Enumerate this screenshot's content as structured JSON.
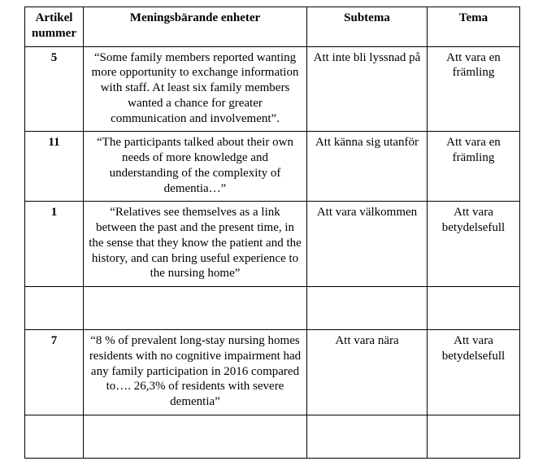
{
  "headers": {
    "col1": "Artikel nummer",
    "col2": "Meningsbärande enheter",
    "col3": "Subtema",
    "col4": "Tema"
  },
  "rows": [
    {
      "num": "5",
      "unit": "“Some family members reported wanting more opportunity to exchange information with staff. At least six family members wanted a chance for greater communication and involvement”.",
      "subtheme": "Att inte bli lyssnad på",
      "theme": "Att vara en främling"
    },
    {
      "num": "11",
      "unit": "“The participants talked about their own needs of more knowledge and understanding of the complexity of dementia…”",
      "subtheme": "Att känna sig utanför",
      "theme": "Att vara en främling"
    },
    {
      "num": "1",
      "unit": "“Relatives see themselves as a link between the past and the present time, in the sense that they know the patient and the history, and can bring useful experience to the nursing home”",
      "subtheme": "Att vara välkommen",
      "theme": "Att vara betydelsefull"
    },
    {
      "num": "7",
      "unit": "“8 % of prevalent long-stay nursing homes residents with no cognitive impairment had any family participation in 2016 compared to…. 26,3% of residents with severe dementia”",
      "subtheme": "Att vara nära",
      "theme": "Att vara betydelsefull"
    }
  ]
}
